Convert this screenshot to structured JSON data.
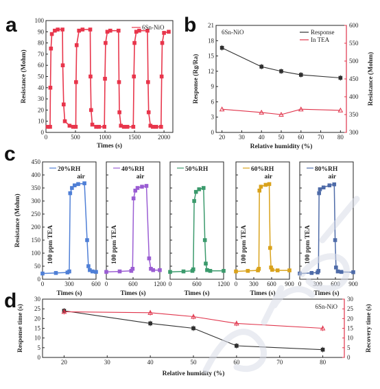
{
  "panel_labels": [
    "a",
    "b",
    "c",
    "d"
  ],
  "chart_data": [
    {
      "id": "a",
      "type": "line",
      "legend": "6Sn-NiO",
      "legend_position": "top-right",
      "color": "#e8354b",
      "xlabel": "Times (s)",
      "ylabel": "Resistance (Mohm)",
      "xlim": [
        0,
        2150
      ],
      "ylim": [
        0,
        100
      ],
      "xticks": [
        0,
        500,
        1000,
        1500,
        2000
      ],
      "yticks": [
        0,
        10,
        20,
        30,
        40,
        50,
        60,
        70,
        80,
        90,
        100
      ],
      "x": [
        30,
        70,
        75,
        85,
        100,
        150,
        200,
        280,
        285,
        300,
        320,
        400,
        460,
        505,
        510,
        520,
        560,
        620,
        750,
        755,
        765,
        785,
        850,
        900,
        990,
        1000,
        1010,
        1040,
        1090,
        1230,
        1238,
        1245,
        1270,
        1320,
        1380,
        1480,
        1490,
        1500,
        1530,
        1580,
        1720,
        1730,
        1740,
        1770,
        1810,
        1870,
        1950,
        1960,
        1970,
        2000,
        2080
      ],
      "y": [
        5,
        5,
        40,
        75,
        88,
        91,
        92,
        92,
        60,
        25,
        10,
        6,
        5,
        5,
        45,
        78,
        91,
        92,
        92,
        50,
        20,
        7,
        5,
        5,
        5,
        48,
        80,
        90,
        91,
        91,
        45,
        18,
        6,
        5,
        5,
        5,
        50,
        80,
        90,
        91,
        91,
        45,
        18,
        6,
        5,
        5,
        5,
        50,
        80,
        89,
        90
      ]
    },
    {
      "id": "b",
      "type": "line",
      "title": "6Sn-NiO",
      "xlabel": "Relative humidity (%)",
      "ylabel": "Response (Rg/Ra)",
      "ylabel_right": "Resistance (Mohm)",
      "xlim": [
        17,
        83
      ],
      "ylim": [
        0,
        21
      ],
      "ylim_right": [
        300,
        600
      ],
      "xticks": [
        20,
        30,
        40,
        50,
        60,
        70,
        80
      ],
      "yticks": [
        0,
        3,
        6,
        9,
        12,
        15,
        18,
        21
      ],
      "yticks_right": [
        300,
        350,
        400,
        450,
        500,
        550,
        600
      ],
      "legend_position": "top-right",
      "series": [
        {
          "name": "Response",
          "axis": "left",
          "color": "#2f2f2f",
          "x": [
            20,
            40,
            50,
            60,
            80
          ],
          "values": [
            16.6,
            12.9,
            12.0,
            11.3,
            10.7
          ]
        },
        {
          "name": "In TEA",
          "axis": "right",
          "color": "#e0334a",
          "x": [
            20,
            40,
            50,
            60,
            80
          ],
          "values": [
            365,
            356,
            350,
            365,
            362
          ]
        }
      ]
    },
    {
      "id": "c1",
      "type": "line",
      "legend": "20%RH",
      "color": "#4f7fd6",
      "ylabel": "Resistance (Mohm)",
      "xlabel": "Times (s)",
      "xlim": [
        0,
        600
      ],
      "ylim": [
        0,
        450
      ],
      "xticks": [
        0,
        300,
        600
      ],
      "yticks": [
        0,
        50,
        100,
        150,
        200,
        250,
        300,
        350,
        400,
        450
      ],
      "annotations": [
        "100 ppm TEA",
        "air"
      ],
      "x": [
        0,
        150,
        280,
        300,
        310,
        330,
        360,
        400,
        470,
        500,
        515,
        530,
        560,
        600
      ],
      "y": [
        22,
        24,
        26,
        30,
        330,
        350,
        360,
        365,
        368,
        150,
        50,
        35,
        30,
        28
      ]
    },
    {
      "id": "c2",
      "type": "line",
      "legend": "40%RH",
      "color": "#9a5dd3",
      "xlabel": "Times (s)",
      "xlim": [
        0,
        1200
      ],
      "ylim": [
        0,
        450
      ],
      "xticks": [
        0,
        600,
        1200
      ],
      "annotations": [
        "100 ppm TEA",
        "air"
      ],
      "x": [
        0,
        300,
        560,
        590,
        610,
        650,
        700,
        800,
        900,
        960,
        1000,
        1050,
        1200
      ],
      "y": [
        28,
        30,
        32,
        40,
        310,
        340,
        350,
        355,
        358,
        80,
        40,
        35,
        35
      ]
    },
    {
      "id": "c3",
      "type": "line",
      "legend": "50%RH",
      "color": "#3b9a6c",
      "xlabel": "Times (s)",
      "xlim": [
        0,
        1200
      ],
      "ylim": [
        0,
        450
      ],
      "xticks": [
        0,
        600,
        1200
      ],
      "x": [
        0,
        300,
        500,
        520,
        540,
        580,
        650,
        750,
        780,
        800,
        830,
        900,
        1200
      ],
      "y": [
        28,
        30,
        32,
        38,
        300,
        335,
        345,
        350,
        150,
        60,
        35,
        32,
        32
      ]
    },
    {
      "id": "c4",
      "type": "line",
      "legend": "60%RH",
      "color": "#d9a21b",
      "xlabel": "Times (s)",
      "xlim": [
        0,
        900
      ],
      "ylim": [
        0,
        450
      ],
      "xticks": [
        0,
        300,
        600,
        900
      ],
      "annotations": [
        "100 ppm TEA",
        "air"
      ],
      "x": [
        0,
        200,
        370,
        385,
        395,
        420,
        500,
        560,
        575,
        590,
        610,
        700,
        900
      ],
      "y": [
        30,
        32,
        34,
        40,
        340,
        355,
        362,
        365,
        120,
        45,
        36,
        34,
        34
      ]
    },
    {
      "id": "c5",
      "type": "line",
      "legend": "80%RH",
      "color": "#4e6ba8",
      "xlabel": "Times (s)",
      "xlim": [
        0,
        900
      ],
      "ylim": [
        0,
        450
      ],
      "xticks": [
        0,
        300,
        600,
        900
      ],
      "annotations": [
        "100 ppm TEA",
        "air"
      ],
      "x": [
        0,
        200,
        300,
        315,
        325,
        340,
        400,
        500,
        580,
        595,
        610,
        640,
        700,
        900
      ],
      "y": [
        22,
        24,
        26,
        32,
        330,
        345,
        352,
        360,
        364,
        150,
        45,
        30,
        28,
        27
      ]
    },
    {
      "id": "d",
      "type": "line",
      "title": "6Sn-NiO",
      "xlabel": "Relative humidity (%)",
      "ylabel": "Response time (s)",
      "ylabel_right": "Recovery time (s)",
      "xlim": [
        15,
        85
      ],
      "ylim": [
        0,
        30
      ],
      "ylim_right": [
        0,
        30
      ],
      "xticks": [
        20,
        30,
        40,
        50,
        60,
        70,
        80
      ],
      "yticks": [
        0,
        5,
        10,
        15,
        20,
        25,
        30
      ],
      "yticks_right": [
        0,
        5,
        10,
        15,
        20,
        25,
        30
      ],
      "series": [
        {
          "axis": "left",
          "color": "#2f2f2f",
          "x": [
            20,
            40,
            50,
            60,
            80
          ],
          "values": [
            24,
            17.5,
            15,
            6,
            4
          ]
        },
        {
          "axis": "right",
          "color": "#e0334a",
          "x": [
            20,
            40,
            50,
            60,
            80
          ],
          "values": [
            23.5,
            23,
            21,
            17.5,
            15
          ]
        }
      ]
    }
  ]
}
